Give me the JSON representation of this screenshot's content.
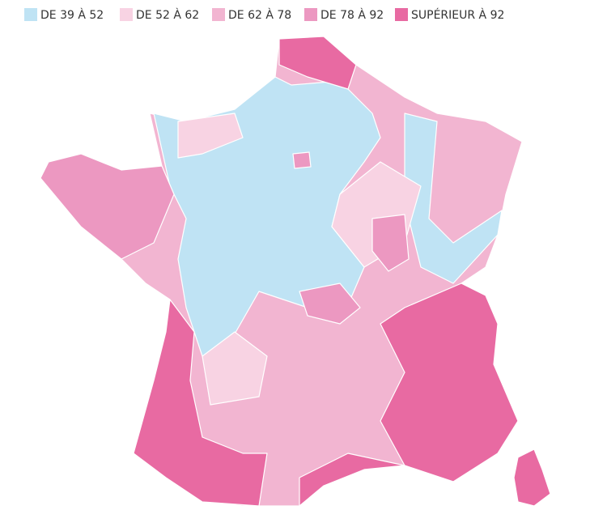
{
  "legend": {
    "items": [
      {
        "label": "DE 39 À 52",
        "color": "#bfe3f4"
      },
      {
        "label": "DE 52 À 62",
        "color": "#f8d3e3"
      },
      {
        "label": "DE 62 À 78",
        "color": "#f2b5d1"
      },
      {
        "label": "DE 78 À 92",
        "color": "#ec98c1"
      },
      {
        "label": "SUPÉRIEUR À 92",
        "color": "#e86aa2"
      }
    ]
  }
}
